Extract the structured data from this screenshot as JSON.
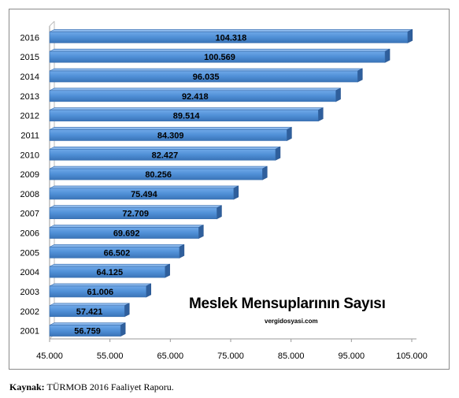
{
  "chart_data": {
    "type": "bar",
    "orientation": "horizontal",
    "title": "Meslek Mensuplarının Sayısı",
    "subtitle": "vergidosyasi.com",
    "categories": [
      "2016",
      "2015",
      "2014",
      "2013",
      "2012",
      "2011",
      "2010",
      "2009",
      "2008",
      "2007",
      "2006",
      "2005",
      "2004",
      "2003",
      "2002",
      "2001"
    ],
    "values": [
      104318,
      100569,
      96035,
      92418,
      89514,
      84309,
      82427,
      80256,
      75494,
      72709,
      69692,
      66502,
      64125,
      61006,
      57421,
      56759
    ],
    "value_labels": [
      "104.318",
      "100.569",
      "96.035",
      "92.418",
      "89.514",
      "84.309",
      "82.427",
      "80.256",
      "75.494",
      "72.709",
      "69.692",
      "66.502",
      "64.125",
      "61.006",
      "57.421",
      "56.759"
    ],
    "xlim": [
      45000,
      105000
    ],
    "x_ticks": [
      45000,
      55000,
      65000,
      75000,
      85000,
      95000,
      105000
    ],
    "x_tick_labels": [
      "45.000",
      "55.000",
      "65.000",
      "75.000",
      "85.000",
      "95.000",
      "105.000"
    ],
    "bar_color": "#4f8fd6",
    "grid": false,
    "legend": "none"
  },
  "source": {
    "label": "Kaynak:",
    "text": "TÜRMOB 2016 Faaliyet Raporu."
  }
}
